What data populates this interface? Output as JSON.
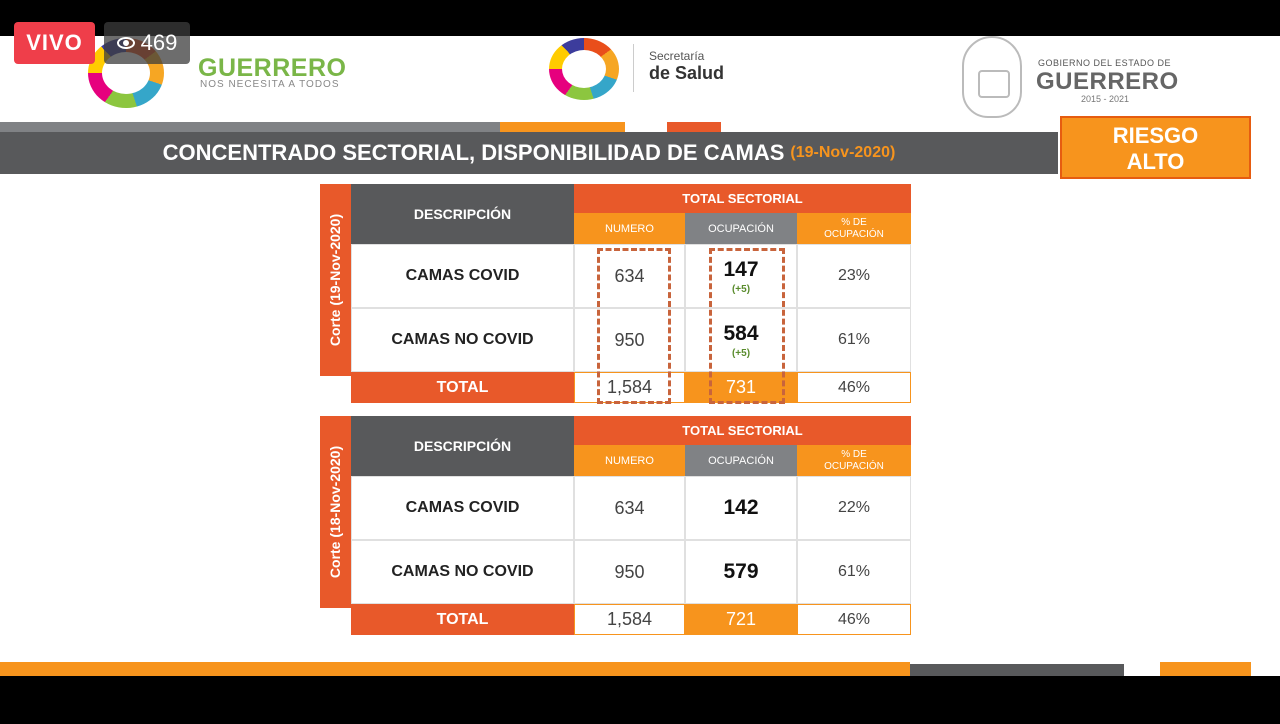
{
  "live": {
    "label": "VIVO",
    "viewers": "469"
  },
  "header": {
    "brand_left": {
      "name": "GUERRERO",
      "tagline": "NOS NECESITA A TODOS"
    },
    "brand_center": {
      "line1": "Secretaría",
      "line2": "de Salud"
    },
    "brand_right": {
      "line1": "GOBIERNO DEL ESTADO DE",
      "line2": "GUERRERO",
      "line3": "2015 - 2021"
    }
  },
  "title": {
    "text": "CONCENTRADO SECTORIAL, DISPONIBILIDAD DE CAMAS",
    "date": "(19-Nov-2020)"
  },
  "risk": {
    "line1": "RIESGO",
    "line2": "ALTO"
  },
  "colors": {
    "orange": "#f7941d",
    "red_orange": "#e8592a",
    "gray": "#58595b",
    "delta_green": "#5a8c2d"
  },
  "tables": [
    {
      "side_label": "Corte (19-Nov-2020)",
      "headers": {
        "description": "DESCRIPCIÓN",
        "group": "TOTAL SECTORIAL",
        "number": "NUMERO",
        "occupation": "OCUPACIÓN",
        "pct": "% DE OCUPACIÓN"
      },
      "rows": [
        {
          "label": "CAMAS COVID",
          "number": "634",
          "occupation": "147",
          "delta": "(+5)",
          "pct": "23%"
        },
        {
          "label": "CAMAS NO COVID",
          "number": "950",
          "occupation": "584",
          "delta": "(+5)",
          "pct": "61%"
        }
      ],
      "total": {
        "label": "TOTAL",
        "number": "1,584",
        "occupation": "731",
        "pct": "46%"
      }
    },
    {
      "side_label": "Corte (18-Nov-2020)",
      "headers": {
        "description": "DESCRIPCIÓN",
        "group": "TOTAL SECTORIAL",
        "number": "NUMERO",
        "occupation": "OCUPACIÓN",
        "pct": "% DE OCUPACIÓN"
      },
      "rows": [
        {
          "label": "CAMAS COVID",
          "number": "634",
          "occupation": "142",
          "pct": "22%"
        },
        {
          "label": "CAMAS NO COVID",
          "number": "950",
          "occupation": "579",
          "pct": "61%"
        }
      ],
      "total": {
        "label": "TOTAL",
        "number": "1,584",
        "occupation": "721",
        "pct": "46%"
      }
    }
  ]
}
